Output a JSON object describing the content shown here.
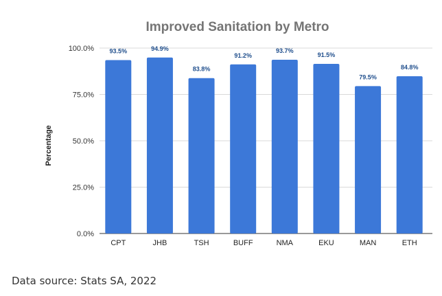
{
  "chart_data": {
    "type": "bar",
    "title": "Improved Sanitation by Metro",
    "xlabel": "",
    "ylabel": "Percentage",
    "categories": [
      "CPT",
      "JHB",
      "TSH",
      "BUFF",
      "NMA",
      "EKU",
      "MAN",
      "ETH"
    ],
    "values": [
      93.5,
      94.9,
      83.8,
      91.2,
      93.7,
      91.5,
      79.5,
      84.8
    ],
    "data_labels": [
      "93.5%",
      "94.9%",
      "83.8%",
      "91.2%",
      "93.7%",
      "91.5%",
      "79.5%",
      "84.8%"
    ],
    "ylim": [
      0,
      100
    ],
    "yticks": [
      0,
      25,
      50,
      75,
      100
    ],
    "ytick_labels": [
      "0.0%",
      "25.0%",
      "50.0%",
      "75.0%",
      "100.0%"
    ],
    "grid": true,
    "bar_color": "#3c78d8",
    "label_color": "#1f4e8c"
  },
  "source": "Data source: Stats SA, 2022"
}
